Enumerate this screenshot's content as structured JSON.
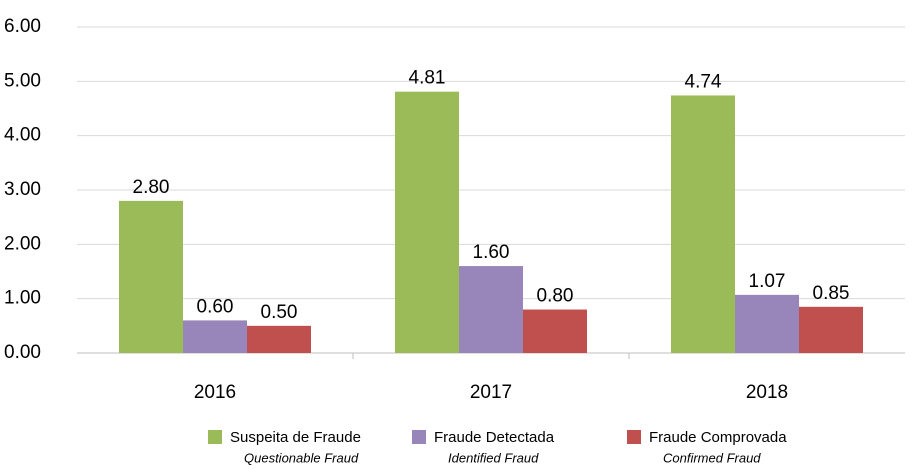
{
  "chart_data": {
    "type": "bar",
    "categories": [
      "2016",
      "2017",
      "2018"
    ],
    "series": [
      {
        "name": "Suspeita de Fraude",
        "name_en": "Questionable Fraud",
        "color": "#9bbb59",
        "values": [
          2.8,
          4.81,
          4.74
        ],
        "value_labels": [
          "2.80",
          "4.81",
          "4.74"
        ]
      },
      {
        "name": "Fraude Detectada",
        "name_en": "Identified Fraud",
        "color": "#9886ba",
        "values": [
          0.6,
          1.6,
          1.07
        ],
        "value_labels": [
          "0.60",
          "1.60",
          "1.07"
        ]
      },
      {
        "name": "Fraude Comprovada",
        "name_en": "Confirmed Fraud",
        "color": "#c0504d",
        "values": [
          0.5,
          0.8,
          0.85
        ],
        "value_labels": [
          "0.50",
          "0.80",
          "0.85"
        ]
      }
    ],
    "ylim": [
      0,
      6
    ],
    "yticks": [
      {
        "value": 0,
        "label": "0.00"
      },
      {
        "value": 1,
        "label": "1.00"
      },
      {
        "value": 2,
        "label": "2.00"
      },
      {
        "value": 3,
        "label": "3.00"
      },
      {
        "value": 4,
        "label": "4.00"
      },
      {
        "value": 5,
        "label": "5.00"
      },
      {
        "value": 6,
        "label": "6.00"
      }
    ],
    "grid": true,
    "legend": "bottom"
  }
}
